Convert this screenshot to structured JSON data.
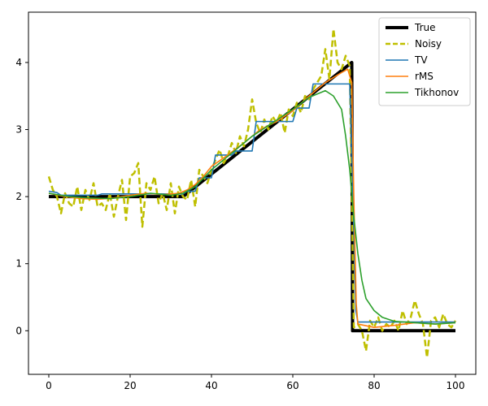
{
  "chart_data": {
    "type": "line",
    "title": "",
    "xlabel": "",
    "ylabel": "",
    "xlim": [
      -5,
      105
    ],
    "ylim": [
      -0.65,
      4.75
    ],
    "xticks": [
      0,
      20,
      40,
      60,
      80,
      100
    ],
    "yticks": [
      0,
      1,
      2,
      3,
      4
    ],
    "grid": false,
    "legend_position": "top-right",
    "series": [
      {
        "name": "True",
        "color": "#000000",
        "style": "solid",
        "x": [
          0,
          33,
          74.5,
          74.7,
          100
        ],
        "y": [
          2,
          2,
          4,
          0,
          0
        ]
      },
      {
        "name": "Noisy",
        "color": "#bfbf00",
        "style": "dashed",
        "x": [
          0,
          1,
          2,
          3,
          4,
          5,
          6,
          7,
          8,
          9,
          10,
          11,
          12,
          13,
          14,
          15,
          16,
          17,
          18,
          19,
          20,
          21,
          22,
          23,
          24,
          25,
          26,
          27,
          28,
          29,
          30,
          31,
          32,
          33,
          34,
          35,
          36,
          37,
          38,
          39,
          40,
          41,
          42,
          43,
          44,
          45,
          46,
          47,
          48,
          49,
          50,
          51,
          52,
          53,
          54,
          55,
          56,
          57,
          58,
          59,
          60,
          61,
          62,
          63,
          64,
          65,
          66,
          67,
          68,
          69,
          70,
          71,
          72,
          73,
          74,
          75,
          76,
          77,
          78,
          79,
          80,
          81,
          82,
          83,
          84,
          85,
          86,
          87,
          88,
          89,
          90,
          91,
          92,
          93,
          94,
          95,
          96,
          97,
          98,
          99,
          100
        ],
        "y": [
          2.3,
          2.1,
          2.0,
          1.75,
          2.05,
          1.9,
          1.85,
          2.15,
          1.8,
          2.1,
          1.95,
          2.2,
          1.85,
          1.9,
          1.8,
          2.05,
          1.7,
          2.0,
          2.25,
          1.65,
          2.3,
          2.35,
          2.5,
          1.55,
          2.2,
          2.1,
          2.3,
          1.9,
          2.05,
          1.8,
          2.2,
          1.75,
          2.15,
          2.0,
          1.95,
          2.25,
          1.85,
          2.4,
          2.3,
          2.2,
          2.4,
          2.55,
          2.7,
          2.5,
          2.6,
          2.8,
          2.65,
          2.9,
          2.75,
          3.0,
          3.45,
          3.1,
          2.95,
          3.15,
          3.0,
          3.2,
          3.1,
          3.25,
          2.95,
          3.3,
          3.2,
          3.4,
          3.25,
          3.5,
          3.45,
          3.6,
          3.7,
          3.8,
          4.2,
          3.75,
          4.5,
          4.0,
          3.9,
          4.1,
          3.95,
          0.05,
          0.1,
          0.0,
          -0.3,
          0.15,
          0.05,
          0.2,
          0.0,
          0.1,
          0.05,
          0.15,
          0.0,
          0.3,
          0.1,
          0.2,
          0.45,
          0.25,
          0.1,
          -0.4,
          0.15,
          0.2,
          0.05,
          0.25,
          0.1,
          0.05,
          0.15
        ]
      },
      {
        "name": "TV",
        "color": "#1f77b4",
        "style": "solid",
        "x": [
          0,
          2,
          3,
          12,
          13,
          33,
          34,
          36,
          37,
          40,
          41,
          45,
          46,
          50,
          51,
          60,
          61,
          64,
          65,
          74,
          74.8,
          75.5,
          76,
          100
        ],
        "y": [
          2.08,
          2.06,
          2.02,
          2.02,
          2.04,
          2.04,
          2.08,
          2.08,
          2.28,
          2.28,
          2.62,
          2.62,
          2.68,
          2.68,
          3.12,
          3.12,
          3.32,
          3.32,
          3.68,
          3.68,
          2.0,
          0.3,
          0.13,
          0.13
        ]
      },
      {
        "name": "rMS",
        "color": "#ff7f0e",
        "style": "solid",
        "x": [
          0,
          4,
          8,
          12,
          16,
          20,
          24,
          28,
          32,
          34,
          36,
          38,
          40,
          44,
          48,
          52,
          56,
          60,
          64,
          68,
          72,
          73.5,
          74.5,
          75,
          75.6,
          76,
          80,
          85,
          90,
          95,
          100
        ],
        "y": [
          2.05,
          2.0,
          1.97,
          1.96,
          1.98,
          2.02,
          2.05,
          2.03,
          2.05,
          2.1,
          2.18,
          2.3,
          2.45,
          2.62,
          2.8,
          3.0,
          3.12,
          3.28,
          3.5,
          3.7,
          3.85,
          3.9,
          3.7,
          2.0,
          0.4,
          0.1,
          0.05,
          0.08,
          0.12,
          0.1,
          0.12
        ]
      },
      {
        "name": "Tikhonov",
        "color": "#2ca02c",
        "style": "solid",
        "x": [
          0,
          5,
          10,
          15,
          20,
          25,
          30,
          33,
          36,
          40,
          45,
          50,
          55,
          60,
          64,
          68,
          70,
          72,
          73,
          74,
          75,
          76,
          77,
          78,
          80,
          82,
          85,
          90,
          95,
          100
        ],
        "y": [
          2.05,
          2.0,
          1.98,
          1.97,
          2.0,
          2.05,
          2.02,
          2.05,
          2.15,
          2.4,
          2.65,
          2.9,
          3.1,
          3.3,
          3.48,
          3.58,
          3.5,
          3.3,
          2.9,
          2.4,
          1.7,
          1.15,
          0.75,
          0.48,
          0.3,
          0.2,
          0.14,
          0.12,
          0.1,
          0.12
        ]
      }
    ]
  }
}
